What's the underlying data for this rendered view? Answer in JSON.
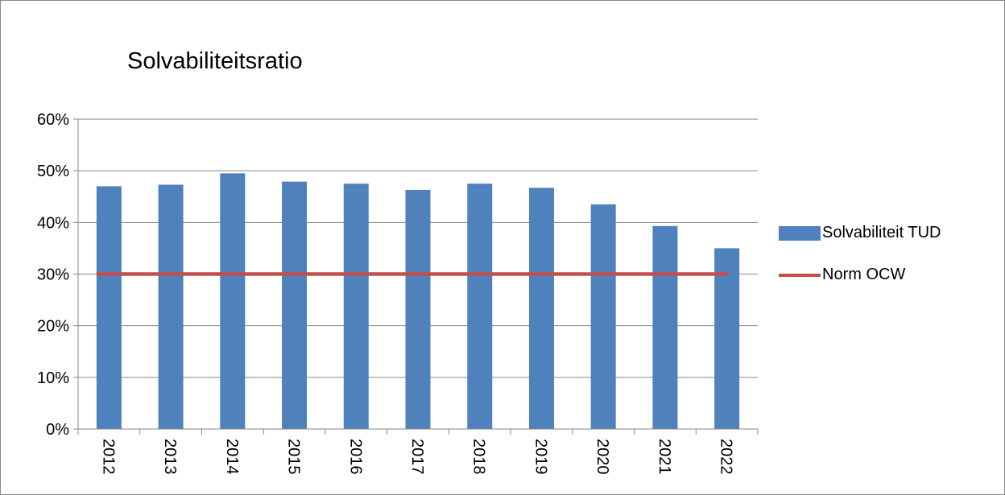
{
  "chart_data": {
    "type": "bar",
    "title": "Solvabiliteitsratio",
    "categories": [
      "2012",
      "2013",
      "2014",
      "2015",
      "2016",
      "2017",
      "2018",
      "2019",
      "2020",
      "2021",
      "2022"
    ],
    "series": [
      {
        "name": "Solvabiliteit TUD",
        "type": "bar",
        "color": "#4F81BD",
        "values": [
          0.47,
          0.473,
          0.495,
          0.479,
          0.475,
          0.463,
          0.475,
          0.467,
          0.435,
          0.393,
          0.35
        ]
      },
      {
        "name": "Norm OCW",
        "type": "line",
        "color": "#C0504D",
        "values": [
          0.3,
          0.3,
          0.3,
          0.3,
          0.3,
          0.3,
          0.3,
          0.3,
          0.3,
          0.3,
          0.3
        ]
      }
    ],
    "ylim": [
      0,
      0.6
    ],
    "yticks": [
      "0%",
      "10%",
      "20%",
      "30%",
      "40%",
      "50%",
      "60%"
    ],
    "xlabel": "",
    "ylabel": "",
    "grid": true,
    "legend": "right"
  }
}
